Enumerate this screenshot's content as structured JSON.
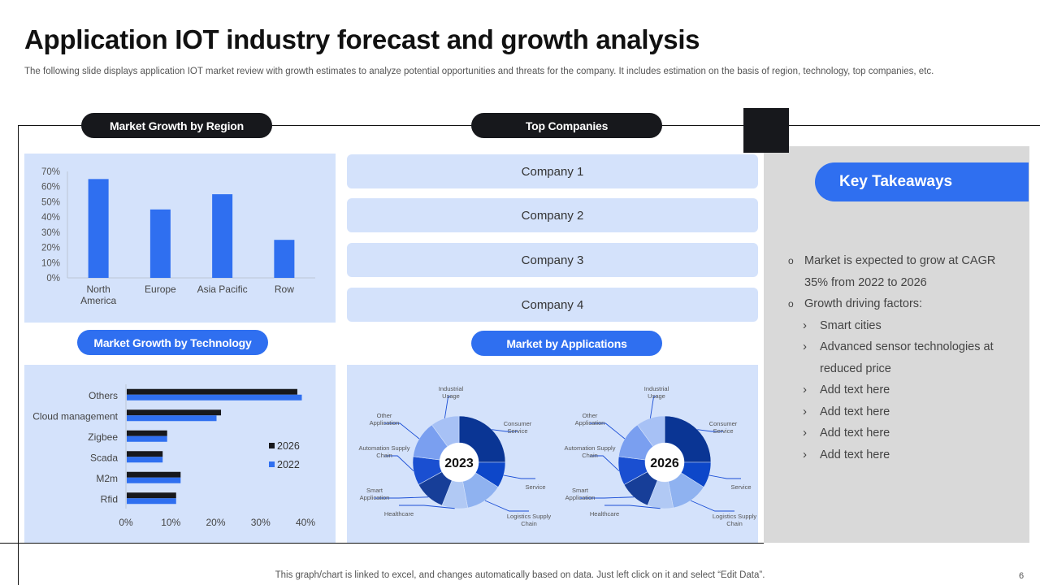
{
  "header": {
    "title": "Application IOT industry forecast and growth analysis",
    "subtitle": "The following slide displays application IOT market review with growth estimates to analyze potential opportunities and threats for the company. It includes estimation on the basis of region, technology, top companies, etc."
  },
  "sections": {
    "region": "Market Growth by Region",
    "companies": "Top Companies",
    "technology": "Market Growth by Technology",
    "applications": "Market by Applications"
  },
  "companies": [
    "Company 1",
    "Company 2",
    "Company 3",
    "Company 4"
  ],
  "takeaways": {
    "title": "Key Takeaways",
    "bullet_1": "Market is expected to grow at CAGR 35% from 2022 to 2026",
    "bullet_2": "Growth driving factors:",
    "sub_items": [
      "Smart cities",
      "Advanced sensor technologies at reduced price",
      "Add text here",
      "Add text here",
      "Add text here",
      "Add text here"
    ]
  },
  "footer": {
    "note": "This graph/chart is linked to excel,  and changes automatically based on data. Just left click on it and select “Edit Data”.",
    "page_number": "6"
  },
  "colors": {
    "accent": "#2f6ff0",
    "dark": "#17181c",
    "panel": "#d4e2fb",
    "takeaway_panel": "#d9d9d9"
  },
  "chart_data": [
    {
      "type": "bar",
      "categories": [
        "North America",
        "Europe",
        "Asia Pacific",
        "Row"
      ],
      "values": [
        65,
        45,
        55,
        25
      ],
      "yticks": [
        "0%",
        "10%",
        "20%",
        "30%",
        "40%",
        "50%",
        "60%",
        "70%"
      ],
      "ylim": [
        0,
        70
      ],
      "grid": false,
      "color": "#2f6ff0"
    },
    {
      "type": "bar",
      "orientation": "horizontal",
      "categories": [
        "Others",
        "Cloud management",
        "Zigbee",
        "Scada",
        "M2m",
        "Rfid"
      ],
      "series": [
        {
          "name": "2026",
          "values": [
            38,
            21,
            9,
            8,
            12,
            11
          ],
          "color": "#17181c"
        },
        {
          "name": "2022",
          "values": [
            39,
            20,
            9,
            8,
            12,
            11
          ],
          "color": "#2f6ff0"
        }
      ],
      "xticks": [
        "0%",
        "10%",
        "20%",
        "30%",
        "40%"
      ],
      "xlim": [
        0,
        40
      ],
      "legend": "right"
    },
    {
      "type": "pie",
      "center_label": "2023",
      "categories": [
        "Consumer Service",
        "Service",
        "Logistics Supply Chain",
        "Healthcare",
        "Smart Application",
        "Automation Supply Chain",
        "Other Application",
        "Industrial Usage"
      ],
      "values": [
        25,
        9,
        13,
        9,
        11,
        10,
        13,
        10
      ],
      "colors": [
        "#0a3594",
        "#0d47c9",
        "#8fb2f0",
        "#b1c9f4",
        "#173e98",
        "#1a4fd1",
        "#7a9ff0",
        "#a7c1f5"
      ]
    },
    {
      "type": "pie",
      "center_label": "2026",
      "categories": [
        "Consumer Service",
        "Service",
        "Logistics Supply Chain",
        "Healthcare",
        "Smart Application",
        "Automation Supply Chain",
        "Other Application",
        "Industrial Usage"
      ],
      "values": [
        25,
        9,
        13,
        9,
        11,
        10,
        13,
        10
      ],
      "colors": [
        "#0a3594",
        "#0d47c9",
        "#8fb2f0",
        "#b1c9f4",
        "#173e98",
        "#1a4fd1",
        "#7a9ff0",
        "#a7c1f5"
      ]
    }
  ]
}
